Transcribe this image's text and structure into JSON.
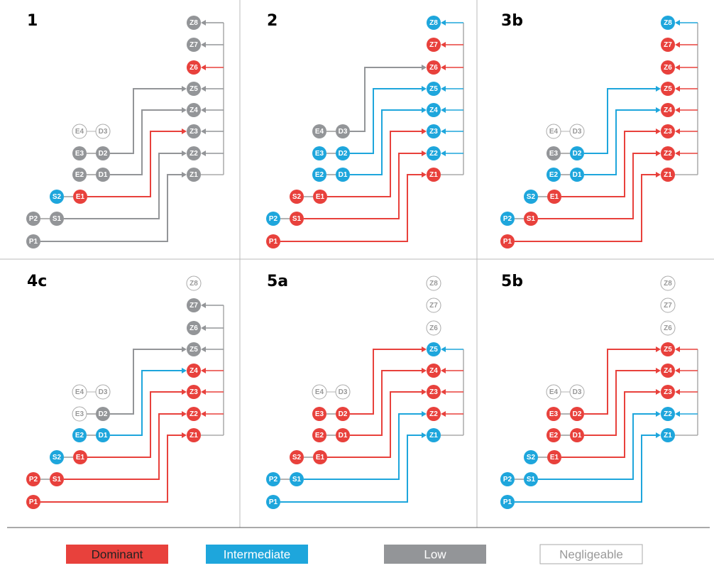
{
  "nodes": [
    "Z8",
    "Z7",
    "Z6",
    "Z5",
    "Z4",
    "Z3",
    "Z2",
    "Z1",
    "E4",
    "D3",
    "E3",
    "D2",
    "E2",
    "D1",
    "S2",
    "E1",
    "P2",
    "S1",
    "P1"
  ],
  "edges": [
    [
      "P1",
      "Z1"
    ],
    [
      "S1",
      "Z2"
    ],
    [
      "E1",
      "Z3"
    ],
    [
      "D1",
      "Z4"
    ],
    [
      "D2",
      "Z5"
    ],
    [
      "D3",
      "Z6"
    ]
  ],
  "legend": [
    {
      "label": "Dominant",
      "color": "#e8413c"
    },
    {
      "label": "Intermediate",
      "color": "#1ea6dc"
    },
    {
      "label": "Low",
      "color": "#939598"
    },
    {
      "label": "Negligeable",
      "color": "#ffffff"
    }
  ],
  "panels": [
    {
      "label": "1",
      "states": [
        "Low",
        "Low",
        "Dominant",
        "Low",
        "Low",
        "Low",
        "Low",
        "Low",
        "Negligeable",
        "Negligeable",
        "Low",
        "Low",
        "Low",
        "Low",
        "Intermediate",
        "Dominant",
        "Low",
        "Low",
        "Low"
      ]
    },
    {
      "label": "2",
      "states": [
        "Intermediate",
        "Dominant",
        "Dominant",
        "Intermediate",
        "Intermediate",
        "Intermediate",
        "Intermediate",
        "Dominant",
        "Low",
        "Low",
        "Intermediate",
        "Intermediate",
        "Intermediate",
        "Intermediate",
        "Dominant",
        "Dominant",
        "Intermediate",
        "Dominant",
        "Dominant"
      ]
    },
    {
      "label": "3b",
      "states": [
        "Intermediate",
        "Dominant",
        "Dominant",
        "Dominant",
        "Dominant",
        "Dominant",
        "Dominant",
        "Dominant",
        "Negligeable",
        "Negligeable",
        "Low",
        "Intermediate",
        "Intermediate",
        "Intermediate",
        "Intermediate",
        "Dominant",
        "Intermediate",
        "Dominant",
        "Dominant"
      ]
    },
    {
      "label": "4c",
      "states": [
        "Negligeable",
        "Low",
        "Low",
        "Low",
        "Dominant",
        "Dominant",
        "Dominant",
        "Dominant",
        "Negligeable",
        "Negligeable",
        "Negligeable",
        "Low",
        "Intermediate",
        "Intermediate",
        "Intermediate",
        "Dominant",
        "Dominant",
        "Dominant",
        "Dominant"
      ]
    },
    {
      "label": "5a",
      "states": [
        "Negligeable",
        "Negligeable",
        "Negligeable",
        "Intermediate",
        "Dominant",
        "Dominant",
        "Dominant",
        "Intermediate",
        "Negligeable",
        "Negligeable",
        "Dominant",
        "Dominant",
        "Dominant",
        "Dominant",
        "Dominant",
        "Dominant",
        "Intermediate",
        "Intermediate",
        "Intermediate"
      ]
    },
    {
      "label": "5b",
      "states": [
        "Negligeable",
        "Negligeable",
        "Negligeable",
        "Dominant",
        "Dominant",
        "Dominant",
        "Intermediate",
        "Intermediate",
        "Negligeable",
        "Negligeable",
        "Dominant",
        "Dominant",
        "Dominant",
        "Dominant",
        "Intermediate",
        "Dominant",
        "Intermediate",
        "Intermediate",
        "Intermediate"
      ]
    }
  ]
}
